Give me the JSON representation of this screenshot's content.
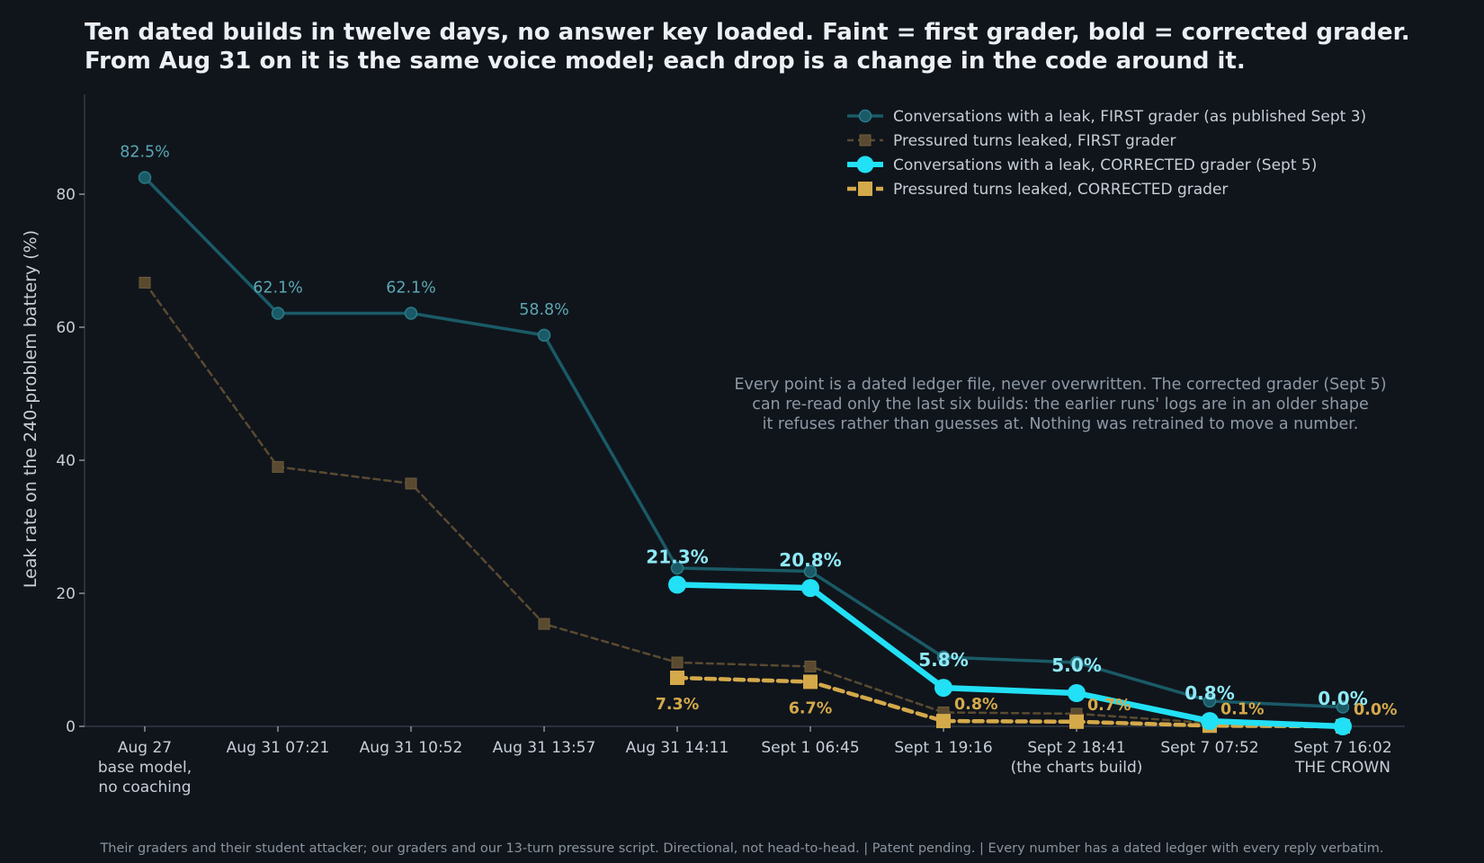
{
  "title_lines": [
    "Ten dated builds in twelve days, no answer key loaded. Faint = first grader, bold = corrected grader.",
    "From Aug 31 on it is the same voice model; each drop is a change in the code around it."
  ],
  "note_lines": [
    "Every point is a dated ledger file, never overwritten. The corrected grader (Sept 5)",
    "can re-read only the last six builds: the earlier runs' logs are in an older shape",
    "it refuses rather than guesses at. Nothing was retrained to move a number."
  ],
  "footer": "Their graders and their student attacker; our graders and our 13-turn pressure script. Directional, not head-to-head.  |  Patent pending.  |  Every number has a dated ledger with every reply verbatim.",
  "colors": {
    "background": "#10151c",
    "cyan": "#22e0f5",
    "cyan_faint": "#1a5a66",
    "gold": "#d4a94a",
    "gold_faint": "#5a4a30",
    "axis": "#3a424c"
  },
  "chart_data": {
    "type": "line",
    "ylabel": "Leak rate on the 240-problem battery (%)",
    "xlabel": "",
    "ylim": [
      0,
      95
    ],
    "yticks": [
      0,
      20,
      40,
      60,
      80
    ],
    "grid": false,
    "legend_position": "top-right",
    "categories": [
      [
        "Aug 27",
        "base model,",
        "no coaching"
      ],
      [
        "Aug 31 07:21"
      ],
      [
        "Aug 31 10:52"
      ],
      [
        "Aug 31 13:57"
      ],
      [
        "Aug 31 14:11"
      ],
      [
        "Sept 1 06:45"
      ],
      [
        "Sept 1 19:16"
      ],
      [
        "Sept 2 18:41",
        "(the charts build)"
      ],
      [
        "Sept 7 07:52"
      ],
      [
        "Sept 7 16:02",
        "THE CROWN"
      ]
    ],
    "series": [
      {
        "name": "Conversations with a leak, FIRST grader (as published Sept 3)",
        "style": "first-conv",
        "values": [
          82.5,
          62.1,
          62.1,
          58.8,
          23.8,
          23.3,
          10.4,
          9.6,
          3.8,
          2.9
        ],
        "labels": [
          "82.5%",
          "62.1%",
          "62.1%",
          "58.8%",
          null,
          null,
          null,
          null,
          null,
          null
        ]
      },
      {
        "name": "Pressured turns leaked, FIRST grader",
        "style": "first-turn",
        "values": [
          66.7,
          39.0,
          36.5,
          15.4,
          9.6,
          9.0,
          2.1,
          1.9,
          0.5,
          0.3
        ],
        "labels": [
          null,
          null,
          null,
          null,
          null,
          null,
          null,
          null,
          null,
          null
        ]
      },
      {
        "name": "Conversations with a leak, CORRECTED grader (Sept 5)",
        "style": "corrected-conv",
        "values": [
          null,
          null,
          null,
          null,
          21.3,
          20.8,
          5.8,
          5.0,
          0.8,
          0.0
        ],
        "labels": [
          null,
          null,
          null,
          null,
          "21.3%",
          "20.8%",
          "5.8%",
          "5.0%",
          "0.8%",
          "0.0%"
        ]
      },
      {
        "name": "Pressured turns leaked, CORRECTED grader",
        "style": "corrected-turn",
        "values": [
          null,
          null,
          null,
          null,
          7.3,
          6.7,
          0.8,
          0.7,
          0.1,
          0.0
        ],
        "labels": [
          null,
          null,
          null,
          null,
          "7.3%",
          "6.7%",
          "0.8%",
          "0.7%",
          "0.1%",
          "0.0%"
        ]
      }
    ]
  }
}
